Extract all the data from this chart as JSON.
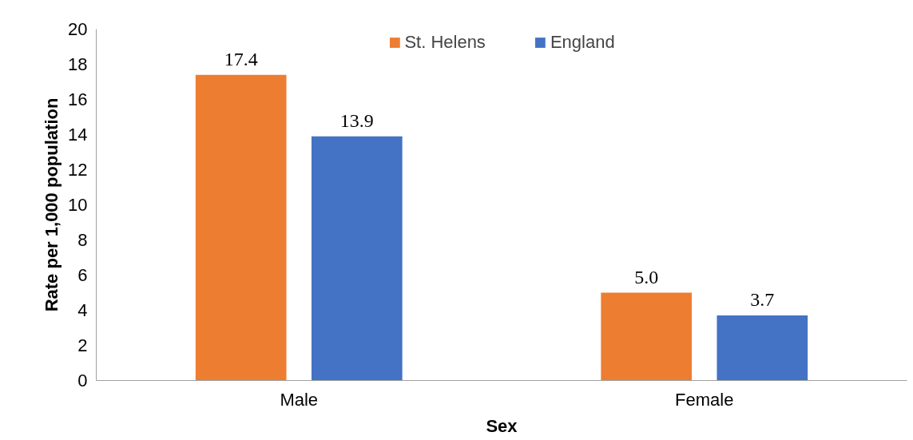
{
  "chart_data": {
    "type": "bar",
    "xlabel": "Sex",
    "ylabel": "Rate per 1,000 population",
    "categories": [
      "Male",
      "Female"
    ],
    "series": [
      {
        "name": "St. Helens",
        "color": "#ed7d31",
        "values": [
          17.4,
          5.0
        ],
        "value_labels": [
          "17.4",
          "5.0"
        ]
      },
      {
        "name": "England",
        "color": "#4472c4",
        "values": [
          13.9,
          3.7
        ],
        "value_labels": [
          "13.9",
          "3.7"
        ]
      }
    ],
    "ylim": [
      0,
      20
    ],
    "yticks": [
      0,
      2,
      4,
      6,
      8,
      10,
      12,
      14,
      16,
      18,
      20
    ],
    "grid": false,
    "legend": "top"
  }
}
